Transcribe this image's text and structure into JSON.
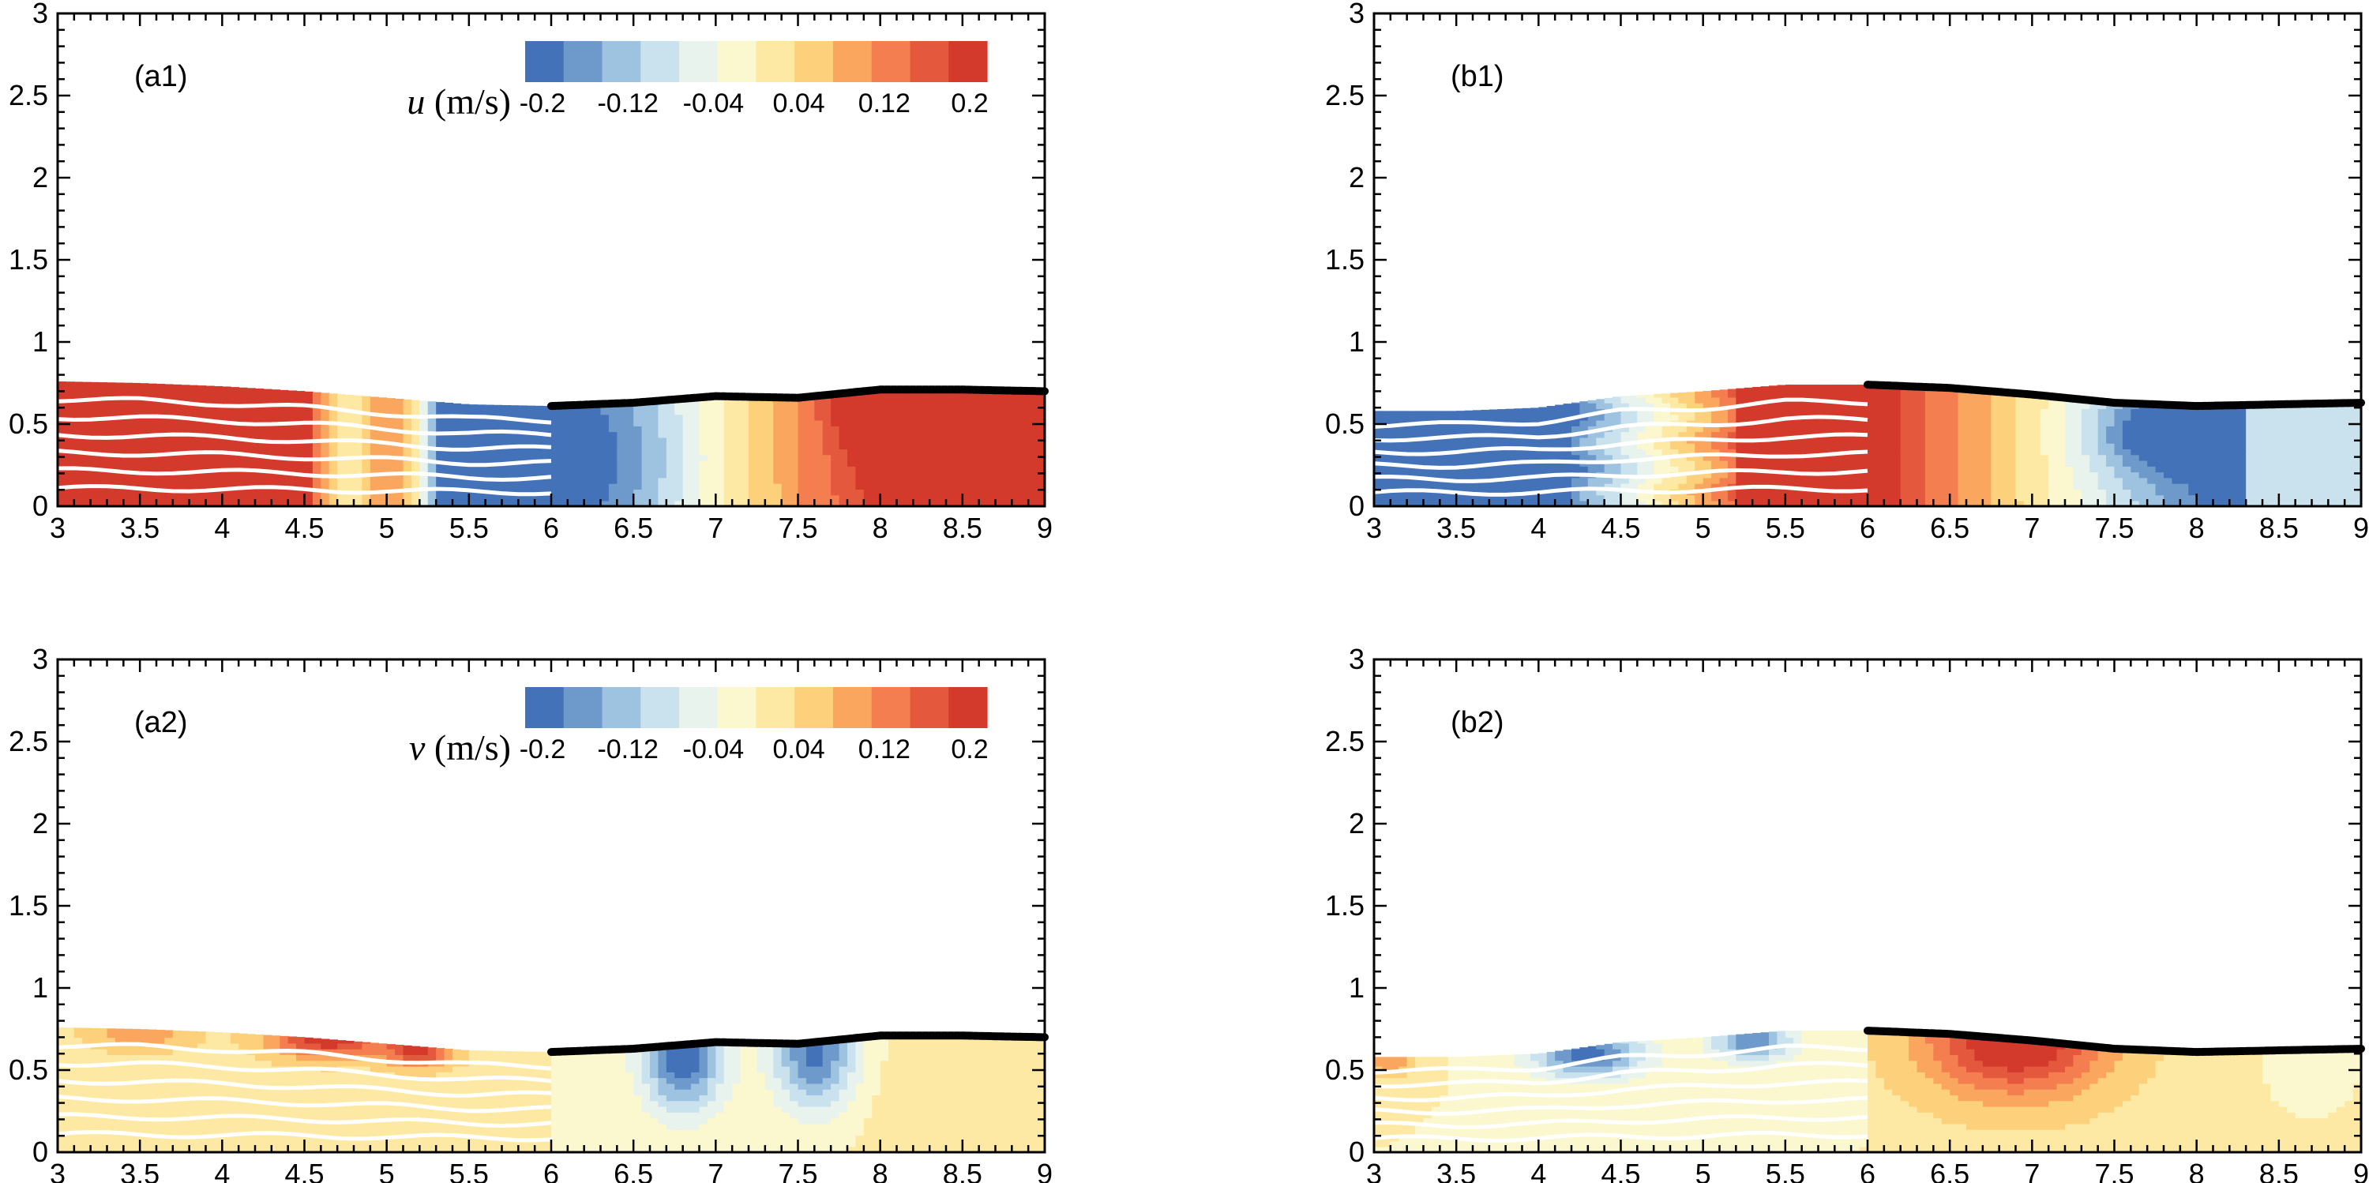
{
  "chart_data": [
    {
      "type": "heatmap",
      "panel_label": "(a1)",
      "field": "u",
      "xlim": [
        3,
        9
      ],
      "ylim": [
        0,
        3
      ],
      "xticks": [
        "3",
        "3.5",
        "4",
        "4.5",
        "5",
        "5.5",
        "6",
        "6.5",
        "7",
        "7.5",
        "8",
        "8.5",
        "9"
      ],
      "yticks": [
        "0",
        "0.5",
        "1",
        "1.5",
        "2",
        "2.5",
        "3"
      ],
      "free_surface": {
        "x": [
          3.0,
          3.5,
          4.0,
          4.5,
          5.0,
          5.5,
          6.0,
          6.5,
          7.0,
          7.5,
          8.0,
          8.5,
          9.0
        ],
        "y": [
          0.76,
          0.75,
          0.73,
          0.7,
          0.66,
          0.62,
          0.61,
          0.63,
          0.67,
          0.66,
          0.71,
          0.71,
          0.7
        ]
      },
      "colorbar": {
        "title_var": "u",
        "title_unit": "(m/s)",
        "tick_labels": [
          "-0.2",
          "-0.12",
          "-0.04",
          "0.04",
          "0.12",
          "0.2"
        ],
        "range": [
          -0.2,
          0.2
        ]
      }
    },
    {
      "type": "heatmap",
      "panel_label": "(b1)",
      "field": "u",
      "xlim": [
        3,
        9
      ],
      "ylim": [
        0,
        3
      ],
      "xticks": [
        "3",
        "3.5",
        "4",
        "4.5",
        "5",
        "5.5",
        "6",
        "6.5",
        "7",
        "7.5",
        "8",
        "8.5",
        "9"
      ],
      "yticks": [
        "0",
        "0.5",
        "1",
        "1.5",
        "2",
        "2.5",
        "3"
      ],
      "free_surface": {
        "x": [
          3.0,
          3.5,
          4.0,
          4.5,
          5.0,
          5.5,
          6.0,
          6.5,
          7.0,
          7.5,
          8.0,
          8.5,
          9.0
        ],
        "y": [
          0.58,
          0.58,
          0.6,
          0.67,
          0.7,
          0.74,
          0.74,
          0.72,
          0.68,
          0.63,
          0.61,
          0.62,
          0.63
        ]
      }
    },
    {
      "type": "heatmap",
      "panel_label": "(a2)",
      "field": "v",
      "xlim": [
        3,
        9
      ],
      "ylim": [
        0,
        3
      ],
      "xticks": [
        "3",
        "3.5",
        "4",
        "4.5",
        "5",
        "5.5",
        "6",
        "6.5",
        "7",
        "7.5",
        "8",
        "8.5",
        "9"
      ],
      "yticks": [
        "0",
        "0.5",
        "1",
        "1.5",
        "2",
        "2.5",
        "3"
      ],
      "free_surface": {
        "x": [
          3.0,
          3.5,
          4.0,
          4.5,
          5.0,
          5.5,
          6.0,
          6.5,
          7.0,
          7.5,
          8.0,
          8.5,
          9.0
        ],
        "y": [
          0.76,
          0.75,
          0.73,
          0.7,
          0.66,
          0.62,
          0.61,
          0.63,
          0.67,
          0.66,
          0.71,
          0.71,
          0.7
        ]
      },
      "colorbar": {
        "title_var": "v",
        "title_unit": "(m/s)",
        "tick_labels": [
          "-0.2",
          "-0.12",
          "-0.04",
          "0.04",
          "0.12",
          "0.2"
        ],
        "range": [
          -0.2,
          0.2
        ]
      }
    },
    {
      "type": "heatmap",
      "panel_label": "(b2)",
      "field": "v",
      "xlim": [
        3,
        9
      ],
      "ylim": [
        0,
        3
      ],
      "xticks": [
        "3",
        "3.5",
        "4",
        "4.5",
        "5",
        "5.5",
        "6",
        "6.5",
        "7",
        "7.5",
        "8",
        "8.5",
        "9"
      ],
      "yticks": [
        "0",
        "0.5",
        "1",
        "1.5",
        "2",
        "2.5",
        "3"
      ],
      "free_surface": {
        "x": [
          3.0,
          3.5,
          4.0,
          4.5,
          5.0,
          5.5,
          6.0,
          6.5,
          7.0,
          7.5,
          8.0,
          8.5,
          9.0
        ],
        "y": [
          0.58,
          0.58,
          0.6,
          0.67,
          0.7,
          0.74,
          0.74,
          0.72,
          0.68,
          0.63,
          0.61,
          0.62,
          0.63
        ]
      }
    }
  ],
  "colormap": [
    "#4472b8",
    "#6e9acb",
    "#9dc3e0",
    "#c9e2ee",
    "#e9f3ee",
    "#fbf8cf",
    "#fde9a4",
    "#fdd17c",
    "#fba65f",
    "#f47e4f",
    "#e4593e",
    "#d33a2c"
  ]
}
